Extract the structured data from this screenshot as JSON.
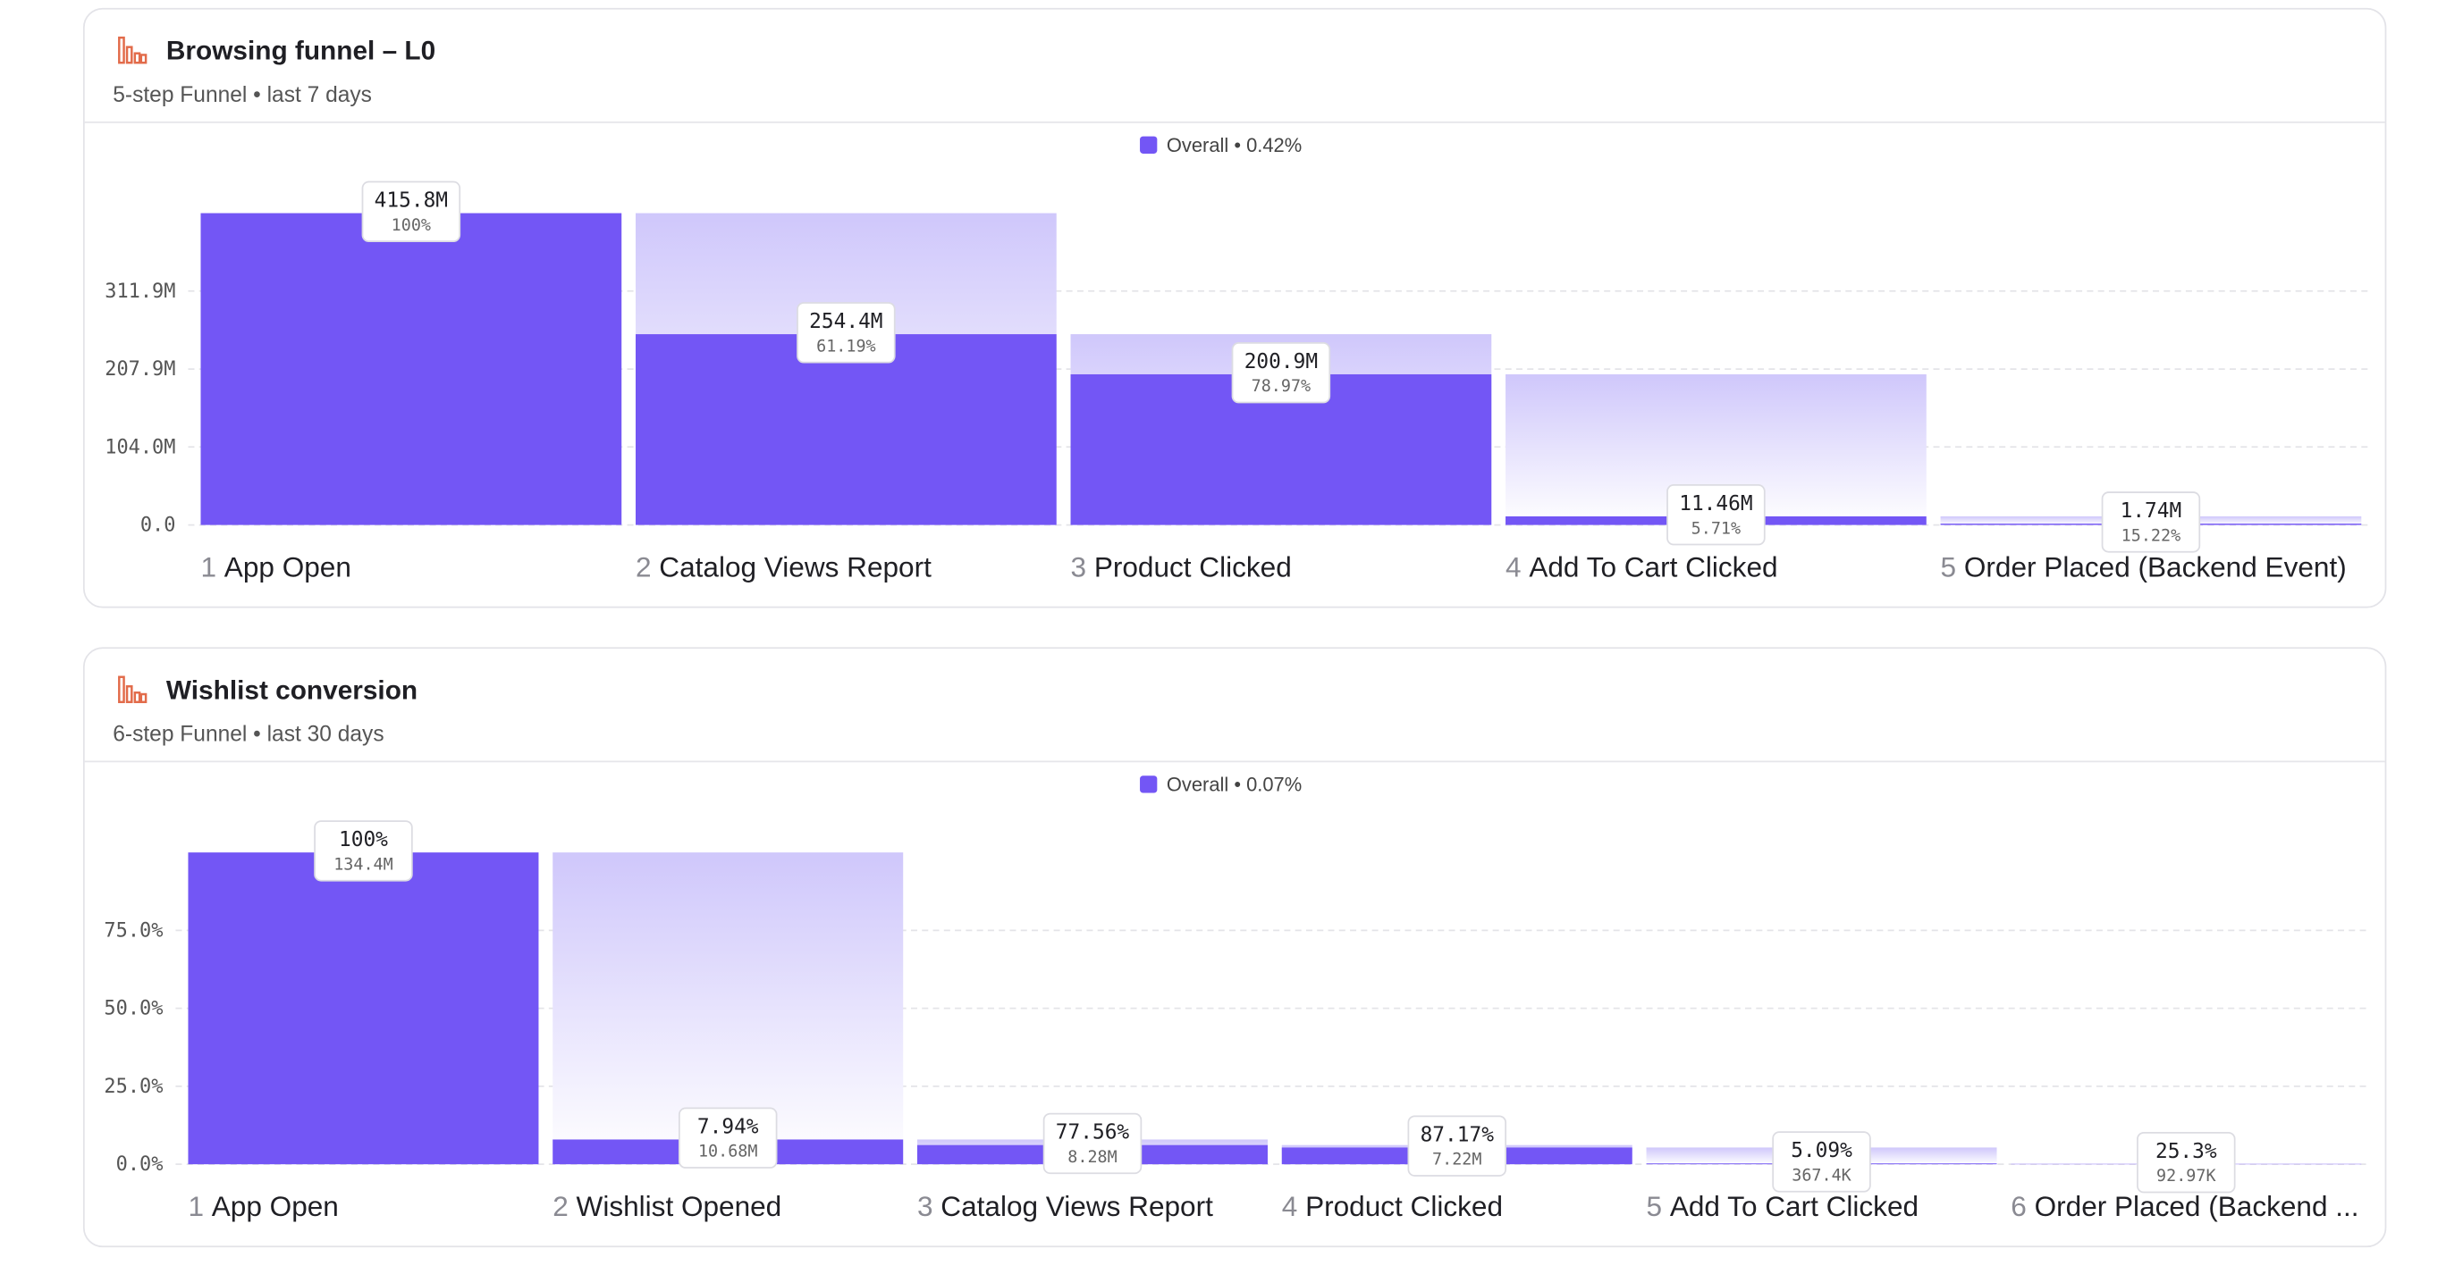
{
  "charts": [
    {
      "type": "bar",
      "title": "Browsing funnel – L0",
      "subtitle": "5-step Funnel • last 7 days",
      "legend": "Overall • 0.42%",
      "color": "#7356f5",
      "step_numbers": [
        1,
        2,
        3,
        4,
        5
      ],
      "categories": [
        "App Open",
        "Catalog Views Report",
        "Product Clicked",
        "Add To Cart Clicked",
        "Order Placed (Backend Event)"
      ],
      "values": [
        415800000,
        254400000,
        200900000,
        11460000,
        1740000
      ],
      "value_labels": [
        "415.8M",
        "254.4M",
        "200.9M",
        "11.46M",
        "1.74M"
      ],
      "conversion": {
        "values": [
          100,
          61.19,
          78.97,
          5.71,
          15.22
        ],
        "value_labels": [
          "100%",
          "61.19%",
          "78.97%",
          "5.71%",
          "15.22%"
        ]
      },
      "ylim": [
        0,
        415800000
      ],
      "yticks": [
        {
          "value": 0,
          "label": "0.0"
        },
        {
          "value": 104000000,
          "label": "104.0M"
        },
        {
          "value": 207900000,
          "label": "207.9M"
        },
        {
          "value": 311900000,
          "label": "311.9M"
        }
      ],
      "grid": true
    },
    {
      "type": "bar",
      "title": "Wishlist conversion",
      "subtitle": "6-step Funnel • last 30 days",
      "legend": "Overall • 0.07%",
      "color": "#7356f5",
      "step_numbers": [
        1,
        2,
        3,
        4,
        5,
        6
      ],
      "categories": [
        "App Open",
        "Wishlist Opened",
        "Catalog Views Report",
        "Product Clicked",
        "Add To Cart Clicked",
        "Order Placed (Backend ..."
      ],
      "values": [
        100,
        7.94,
        6.16,
        5.37,
        0.273,
        0.069
      ],
      "conversion": {
        "values": [
          100,
          7.94,
          77.56,
          87.17,
          5.09,
          25.3
        ],
        "value_labels": [
          "100%",
          "7.94%",
          "77.56%",
          "87.17%",
          "5.09%",
          "25.3%"
        ]
      },
      "counts": {
        "values": [
          134400000,
          10680000,
          8280000,
          7220000,
          367400,
          92970
        ],
        "value_labels": [
          "134.4M",
          "10.68M",
          "8.28M",
          "7.22M",
          "367.4K",
          "92.97K"
        ]
      },
      "ylim": [
        0,
        100
      ],
      "yticks": [
        {
          "value": 0,
          "label": "0.0%"
        },
        {
          "value": 25,
          "label": "25.0%"
        },
        {
          "value": 50,
          "label": "50.0%"
        },
        {
          "value": 75,
          "label": "75.0%"
        }
      ],
      "grid": true
    }
  ]
}
